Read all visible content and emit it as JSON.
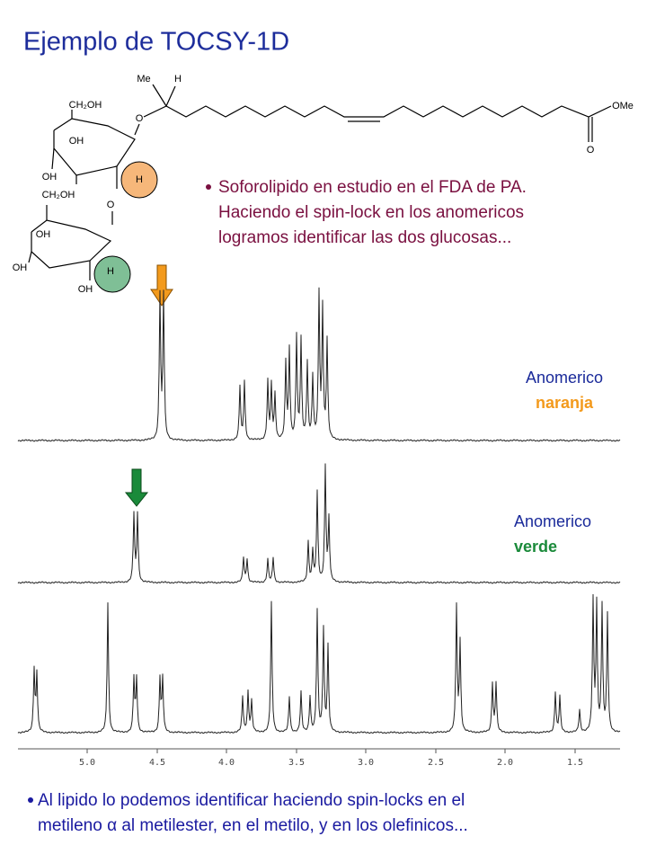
{
  "title": "Ejemplo de TOCSY-1D",
  "molecule": {
    "labels": [
      "Me",
      "H",
      "O",
      "OMe",
      "O",
      "CH₂OH",
      "OH",
      "OH",
      "H",
      "O",
      "CH₂OH",
      "OH",
      "OH",
      "OH",
      "H"
    ]
  },
  "bullet1": {
    "lines": [
      "Soforolipido en estudio en el FDA de PA.",
      "Haciendo el spin-lock en los anomericos",
      "logramos identificar las dos glucosas..."
    ]
  },
  "labels": {
    "orange_1": "Anomerico",
    "orange_2": "naranja",
    "green_1": "Anomerico",
    "green_2": "verde"
  },
  "axis": {
    "labels": [
      "5.0",
      "4.5",
      "4.0",
      "3.5",
      "3.0",
      "2.5",
      "2.0",
      "1.5"
    ]
  },
  "bullet2": {
    "lines": [
      "Al lipido lo podemos identificar haciendo spin-locks en el",
      "metileno α al metilester, en el metilo, y en los olefinicos..."
    ]
  }
}
